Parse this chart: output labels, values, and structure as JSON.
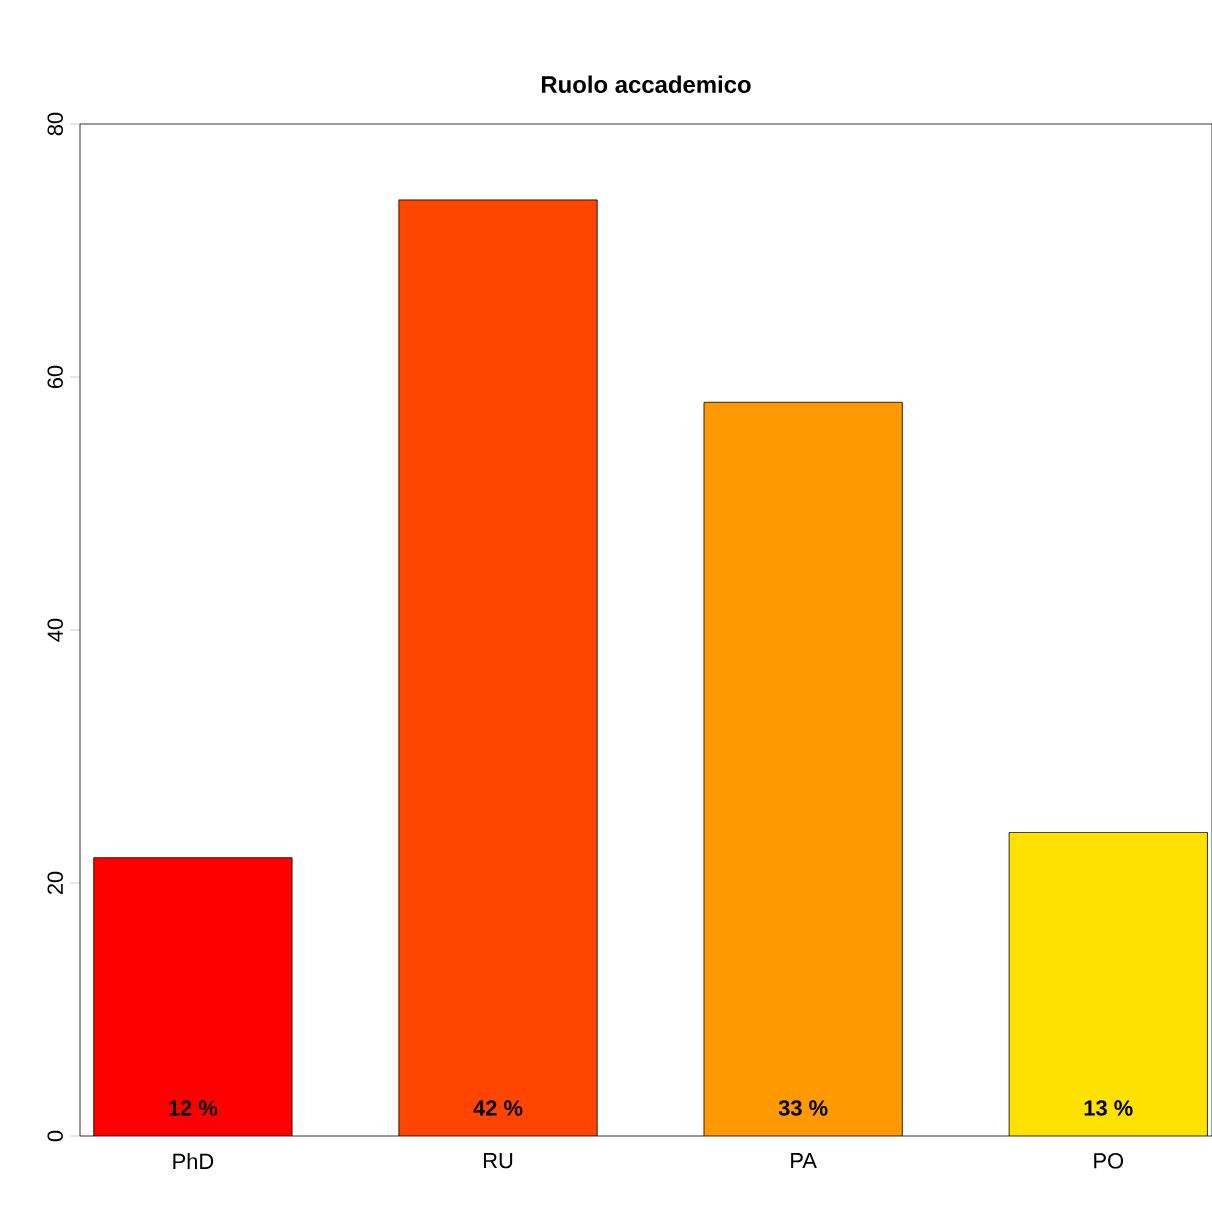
{
  "chart_data": {
    "type": "bar",
    "title": "Ruolo accademico",
    "categories": [
      "PhD",
      "RU",
      "PA",
      "PO"
    ],
    "values": [
      22,
      74,
      58,
      24
    ],
    "colors": [
      "#ff0000",
      "#ff4500",
      "#ff9900",
      "#ffe100"
    ],
    "ylim": [
      0,
      80
    ],
    "yticks": [
      0,
      20,
      40,
      60,
      80
    ],
    "grid": false,
    "annotations": [
      "12 %",
      "42 %",
      "33 %",
      "13 %"
    ]
  }
}
